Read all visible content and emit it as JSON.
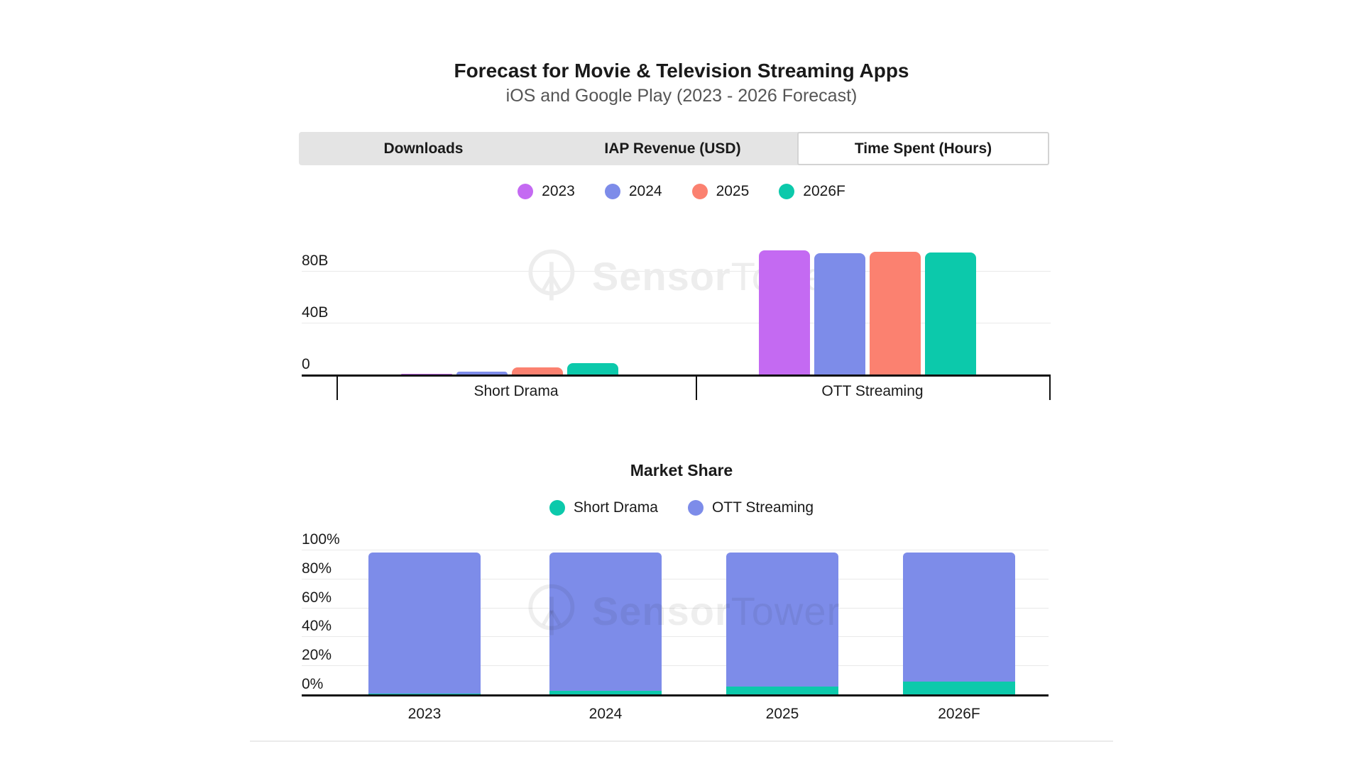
{
  "header": {
    "title": "Forecast for Movie & Television Streaming Apps",
    "subtitle": "iOS and Google Play (2023 - 2026 Forecast)"
  },
  "tabs": [
    {
      "label": "Downloads",
      "active": false
    },
    {
      "label": "IAP Revenue (USD)",
      "active": false
    },
    {
      "label": "Time Spent (Hours)",
      "active": true
    }
  ],
  "watermark": {
    "brand_bold": "Sensor",
    "brand_light": "Tower"
  },
  "colors": {
    "year_2023": "#c46af2",
    "year_2024": "#7d8ce9",
    "year_2025": "#fb8170",
    "year_2026f": "#0cc9ab",
    "short_drama": "#0cc9ab",
    "ott_streaming": "#7d8ce9",
    "tab_inactive_bg": "#e4e4e4",
    "gridline": "#e9e9e9",
    "axis": "#111111"
  },
  "chart_data": [
    {
      "type": "bar",
      "title": "Time Spent (Hours)",
      "categories": [
        "Short Drama",
        "OTT Streaming"
      ],
      "series": [
        {
          "name": "2023",
          "color": "#c46af2",
          "values": [
            0.5,
            96
          ]
        },
        {
          "name": "2024",
          "color": "#7d8ce9",
          "values": [
            2,
            93.5
          ]
        },
        {
          "name": "2025",
          "color": "#fb8170",
          "values": [
            5.5,
            95
          ]
        },
        {
          "name": "2026F",
          "color": "#0cc9ab",
          "values": [
            9,
            94.5
          ]
        }
      ],
      "unit": "billions of hours",
      "yticks": [
        "0",
        "40B",
        "80B"
      ],
      "ylim": [
        0,
        108
      ],
      "grid": true,
      "legend_position": "top"
    },
    {
      "type": "bar-stacked",
      "title": "Market Share",
      "categories": [
        "2023",
        "2024",
        "2025",
        "2026F"
      ],
      "series": [
        {
          "name": "Short Drama",
          "color": "#0cc9ab",
          "values": [
            0.5,
            2.5,
            5.5,
            9
          ]
        },
        {
          "name": "OTT Streaming",
          "color": "#7d8ce9",
          "values": [
            97.5,
            95.5,
            92.5,
            89
          ]
        }
      ],
      "unit": "percent",
      "yticks": [
        "0%",
        "20%",
        "40%",
        "60%",
        "80%",
        "100%"
      ],
      "ylim": [
        0,
        100
      ],
      "grid": true,
      "legend_position": "top"
    }
  ]
}
